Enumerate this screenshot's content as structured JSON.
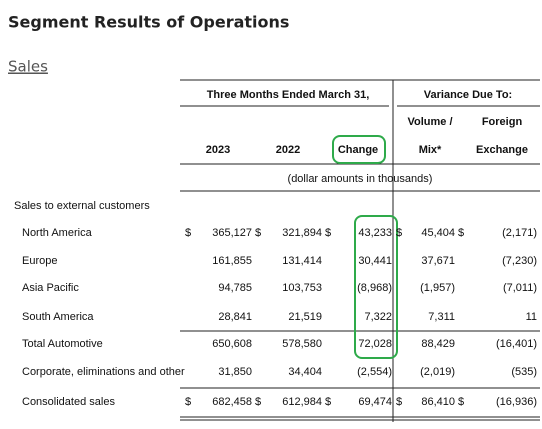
{
  "title": "Segment Results of Operations",
  "section": "Sales",
  "header": {
    "period": "Three Months Ended March 31,",
    "variance": "Variance Due To:",
    "columns": [
      {
        "top": null,
        "bottom": "2023"
      },
      {
        "top": null,
        "bottom": "2022"
      },
      {
        "top": null,
        "bottom": "Change"
      },
      {
        "top": "Volume /",
        "bottom": "Mix*"
      },
      {
        "top": "Foreign",
        "bottom": "Exchange"
      }
    ],
    "units": "(dollar amounts in thousands)"
  },
  "currency_symbol": "$",
  "group_label": "Sales to external customers",
  "rows": [
    {
      "label": "North America",
      "dollar": true,
      "cells": [
        "365,127",
        "321,894",
        "43,233",
        "45,404",
        "(2,171)"
      ]
    },
    {
      "label": "Europe",
      "dollar": false,
      "cells": [
        "161,855",
        "131,414",
        "30,441",
        "37,671",
        "(7,230)"
      ]
    },
    {
      "label": "Asia Pacific",
      "dollar": false,
      "cells": [
        "94,785",
        "103,753",
        "(8,968)",
        "(1,957)",
        "(7,011)"
      ]
    },
    {
      "label": "South America",
      "dollar": false,
      "cells": [
        "28,841",
        "21,519",
        "7,322",
        "7,311",
        "11"
      ]
    },
    {
      "label": "Total Automotive",
      "dollar": false,
      "cells": [
        "650,608",
        "578,580",
        "72,028",
        "88,429",
        "(16,401)"
      ]
    },
    {
      "label": "Corporate, eliminations and other",
      "dollar": false,
      "cells": [
        "31,850",
        "34,404",
        "(2,554)",
        "(2,019)",
        "(535)"
      ]
    },
    {
      "label": "Consolidated sales",
      "dollar": true,
      "cells": [
        "682,458",
        "612,984",
        "69,474",
        "86,410",
        "(16,936)"
      ]
    }
  ]
}
